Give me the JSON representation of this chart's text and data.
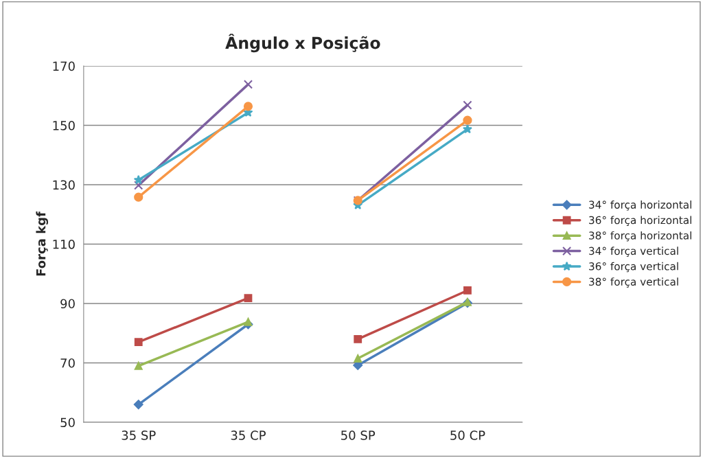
{
  "chart_data": {
    "type": "line",
    "title": "Ângulo x Posição",
    "ylabel": "Força kgf",
    "categories": [
      "35 SP",
      "35 CP",
      "50 SP",
      "50 CP"
    ],
    "series": [
      {
        "name": "34° força horizontal",
        "color": "#4a7ebb",
        "marker": "diamond",
        "values": [
          56,
          83,
          69.2,
          90.2
        ]
      },
      {
        "name": "36° força horizontal",
        "color": "#be4b48",
        "marker": "square",
        "values": [
          77,
          91.8,
          78,
          94.4
        ]
      },
      {
        "name": "38° força horizontal",
        "color": "#98b954",
        "marker": "triangle",
        "values": [
          69,
          83.8,
          71.5,
          90.5
        ]
      },
      {
        "name": "34° força vertical",
        "color": "#7d60a0",
        "marker": "cross",
        "values": [
          129.8,
          163.8,
          124.7,
          156.8
        ]
      },
      {
        "name": "36° força vertical",
        "color": "#46aac5",
        "marker": "star",
        "values": [
          131.6,
          154.3,
          123.1,
          148.7
        ]
      },
      {
        "name": "38° força vertical",
        "color": "#f79646",
        "marker": "circle",
        "values": [
          125.8,
          156.4,
          124.7,
          151.7
        ]
      }
    ],
    "ylim": [
      50,
      170
    ],
    "yticks": [
      50,
      70,
      90,
      110,
      130,
      150,
      170
    ],
    "grid": "y",
    "legend": "right"
  }
}
